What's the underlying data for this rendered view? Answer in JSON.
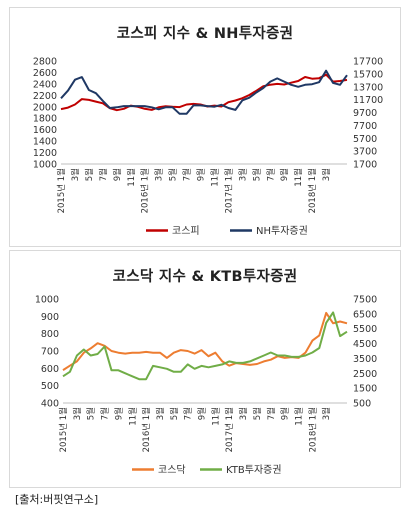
{
  "source": "[출처:버핏연구소]",
  "chart_data": [
    {
      "type": "line",
      "title": "코스피 지수 & NH투자증권",
      "x_ticks": [
        "2015년 1월",
        "3월",
        "5월",
        "7월",
        "9월",
        "11월",
        "2016년 1월",
        "3월",
        "5월",
        "7월",
        "9월",
        "11월",
        "2017년 1월",
        "3월",
        "5월",
        "7월",
        "9월",
        "11월",
        "2018년 1월",
        "3월"
      ],
      "x_tick_labels": [
        "2015년 1",
        "3",
        "5",
        "7",
        "9",
        "11",
        "2016년 1",
        "3",
        "5",
        "7",
        "9",
        "11",
        "2017년 1",
        "3",
        "5",
        "7",
        "9",
        "11",
        "2018년 1",
        "3"
      ],
      "x_tick_suffix": "월",
      "y_left": {
        "min": 1000,
        "max": 2800,
        "ticks": [
          1000,
          1200,
          1400,
          1600,
          1800,
          2000,
          2200,
          2400,
          2600,
          2800
        ]
      },
      "y_right": {
        "min": 1700,
        "max": 17700,
        "ticks": [
          1700,
          3700,
          5700,
          7700,
          9700,
          11700,
          13700,
          15700,
          17700
        ]
      },
      "legend": "bottom",
      "series": [
        {
          "name": "코스피",
          "axis": "left",
          "color": "#c00000",
          "values": [
            1960,
            1985,
            2040,
            2135,
            2120,
            2090,
            2060,
            1975,
            1940,
            1965,
            2020,
            2000,
            1965,
            1945,
            1990,
            2010,
            2000,
            1995,
            2040,
            2050,
            2040,
            2005,
            2020,
            2005,
            2080,
            2110,
            2150,
            2205,
            2280,
            2360,
            2385,
            2400,
            2390,
            2420,
            2450,
            2520,
            2490,
            2500,
            2560,
            2440,
            2450,
            2470
          ]
        },
        {
          "name": "NH투자증권",
          "axis": "right",
          "color": "#1f3864",
          "values": [
            11900,
            13100,
            14800,
            15200,
            13200,
            12700,
            11500,
            10400,
            10500,
            10700,
            10700,
            10700,
            10700,
            10500,
            10200,
            10500,
            10500,
            9500,
            9500,
            10800,
            10800,
            10700,
            10600,
            10900,
            10400,
            10100,
            11600,
            12000,
            12800,
            13500,
            14500,
            15000,
            14500,
            14000,
            13700,
            14000,
            14100,
            14400,
            16200,
            14300,
            14000,
            15500
          ]
        }
      ]
    },
    {
      "type": "line",
      "title": "코스닥 지수 & KTB투자증권",
      "x_ticks": [
        "2015년 1월",
        "3월",
        "5월",
        "7월",
        "9월",
        "11월",
        "2016년 1월",
        "3월",
        "5월",
        "7월",
        "9월",
        "11월",
        "2017년 1월",
        "3월",
        "5월",
        "7월",
        "9월",
        "11월",
        "2018년 1월",
        "3월"
      ],
      "x_tick_labels": [
        "2015년 1",
        "3",
        "5",
        "7",
        "9",
        "11",
        "2016년 1",
        "3",
        "5",
        "7",
        "9",
        "11",
        "2017년 1",
        "3",
        "5",
        "7",
        "9",
        "11",
        "2018년 1",
        "3"
      ],
      "x_tick_suffix": "월",
      "y_left": {
        "min": 400,
        "max": 1000,
        "ticks": [
          400,
          500,
          600,
          700,
          800,
          900,
          1000
        ]
      },
      "y_right": {
        "min": 500,
        "max": 7500,
        "ticks": [
          500,
          1500,
          2500,
          3500,
          4500,
          5500,
          6500,
          7500
        ]
      },
      "legend": "bottom",
      "series": [
        {
          "name": "코스닥",
          "axis": "left",
          "color": "#ed7d31",
          "values": [
            590,
            615,
            640,
            690,
            715,
            745,
            730,
            700,
            690,
            685,
            690,
            690,
            695,
            690,
            690,
            660,
            690,
            705,
            700,
            685,
            705,
            670,
            690,
            640,
            615,
            630,
            625,
            620,
            625,
            640,
            650,
            670,
            660,
            665,
            660,
            690,
            760,
            790,
            920,
            860,
            870,
            860
          ]
        },
        {
          "name": "KTB투자증권",
          "axis": "right",
          "color": "#70ad47",
          "values": [
            2300,
            2600,
            3700,
            4100,
            3700,
            3800,
            4300,
            2700,
            2700,
            2500,
            2300,
            2100,
            2100,
            3000,
            2900,
            2800,
            2600,
            2600,
            3100,
            2800,
            3000,
            2900,
            3000,
            3100,
            3300,
            3200,
            3200,
            3300,
            3500,
            3700,
            3900,
            3700,
            3700,
            3600,
            3600,
            3700,
            3900,
            4200,
            5900,
            6600,
            5000,
            5300
          ]
        }
      ]
    }
  ]
}
